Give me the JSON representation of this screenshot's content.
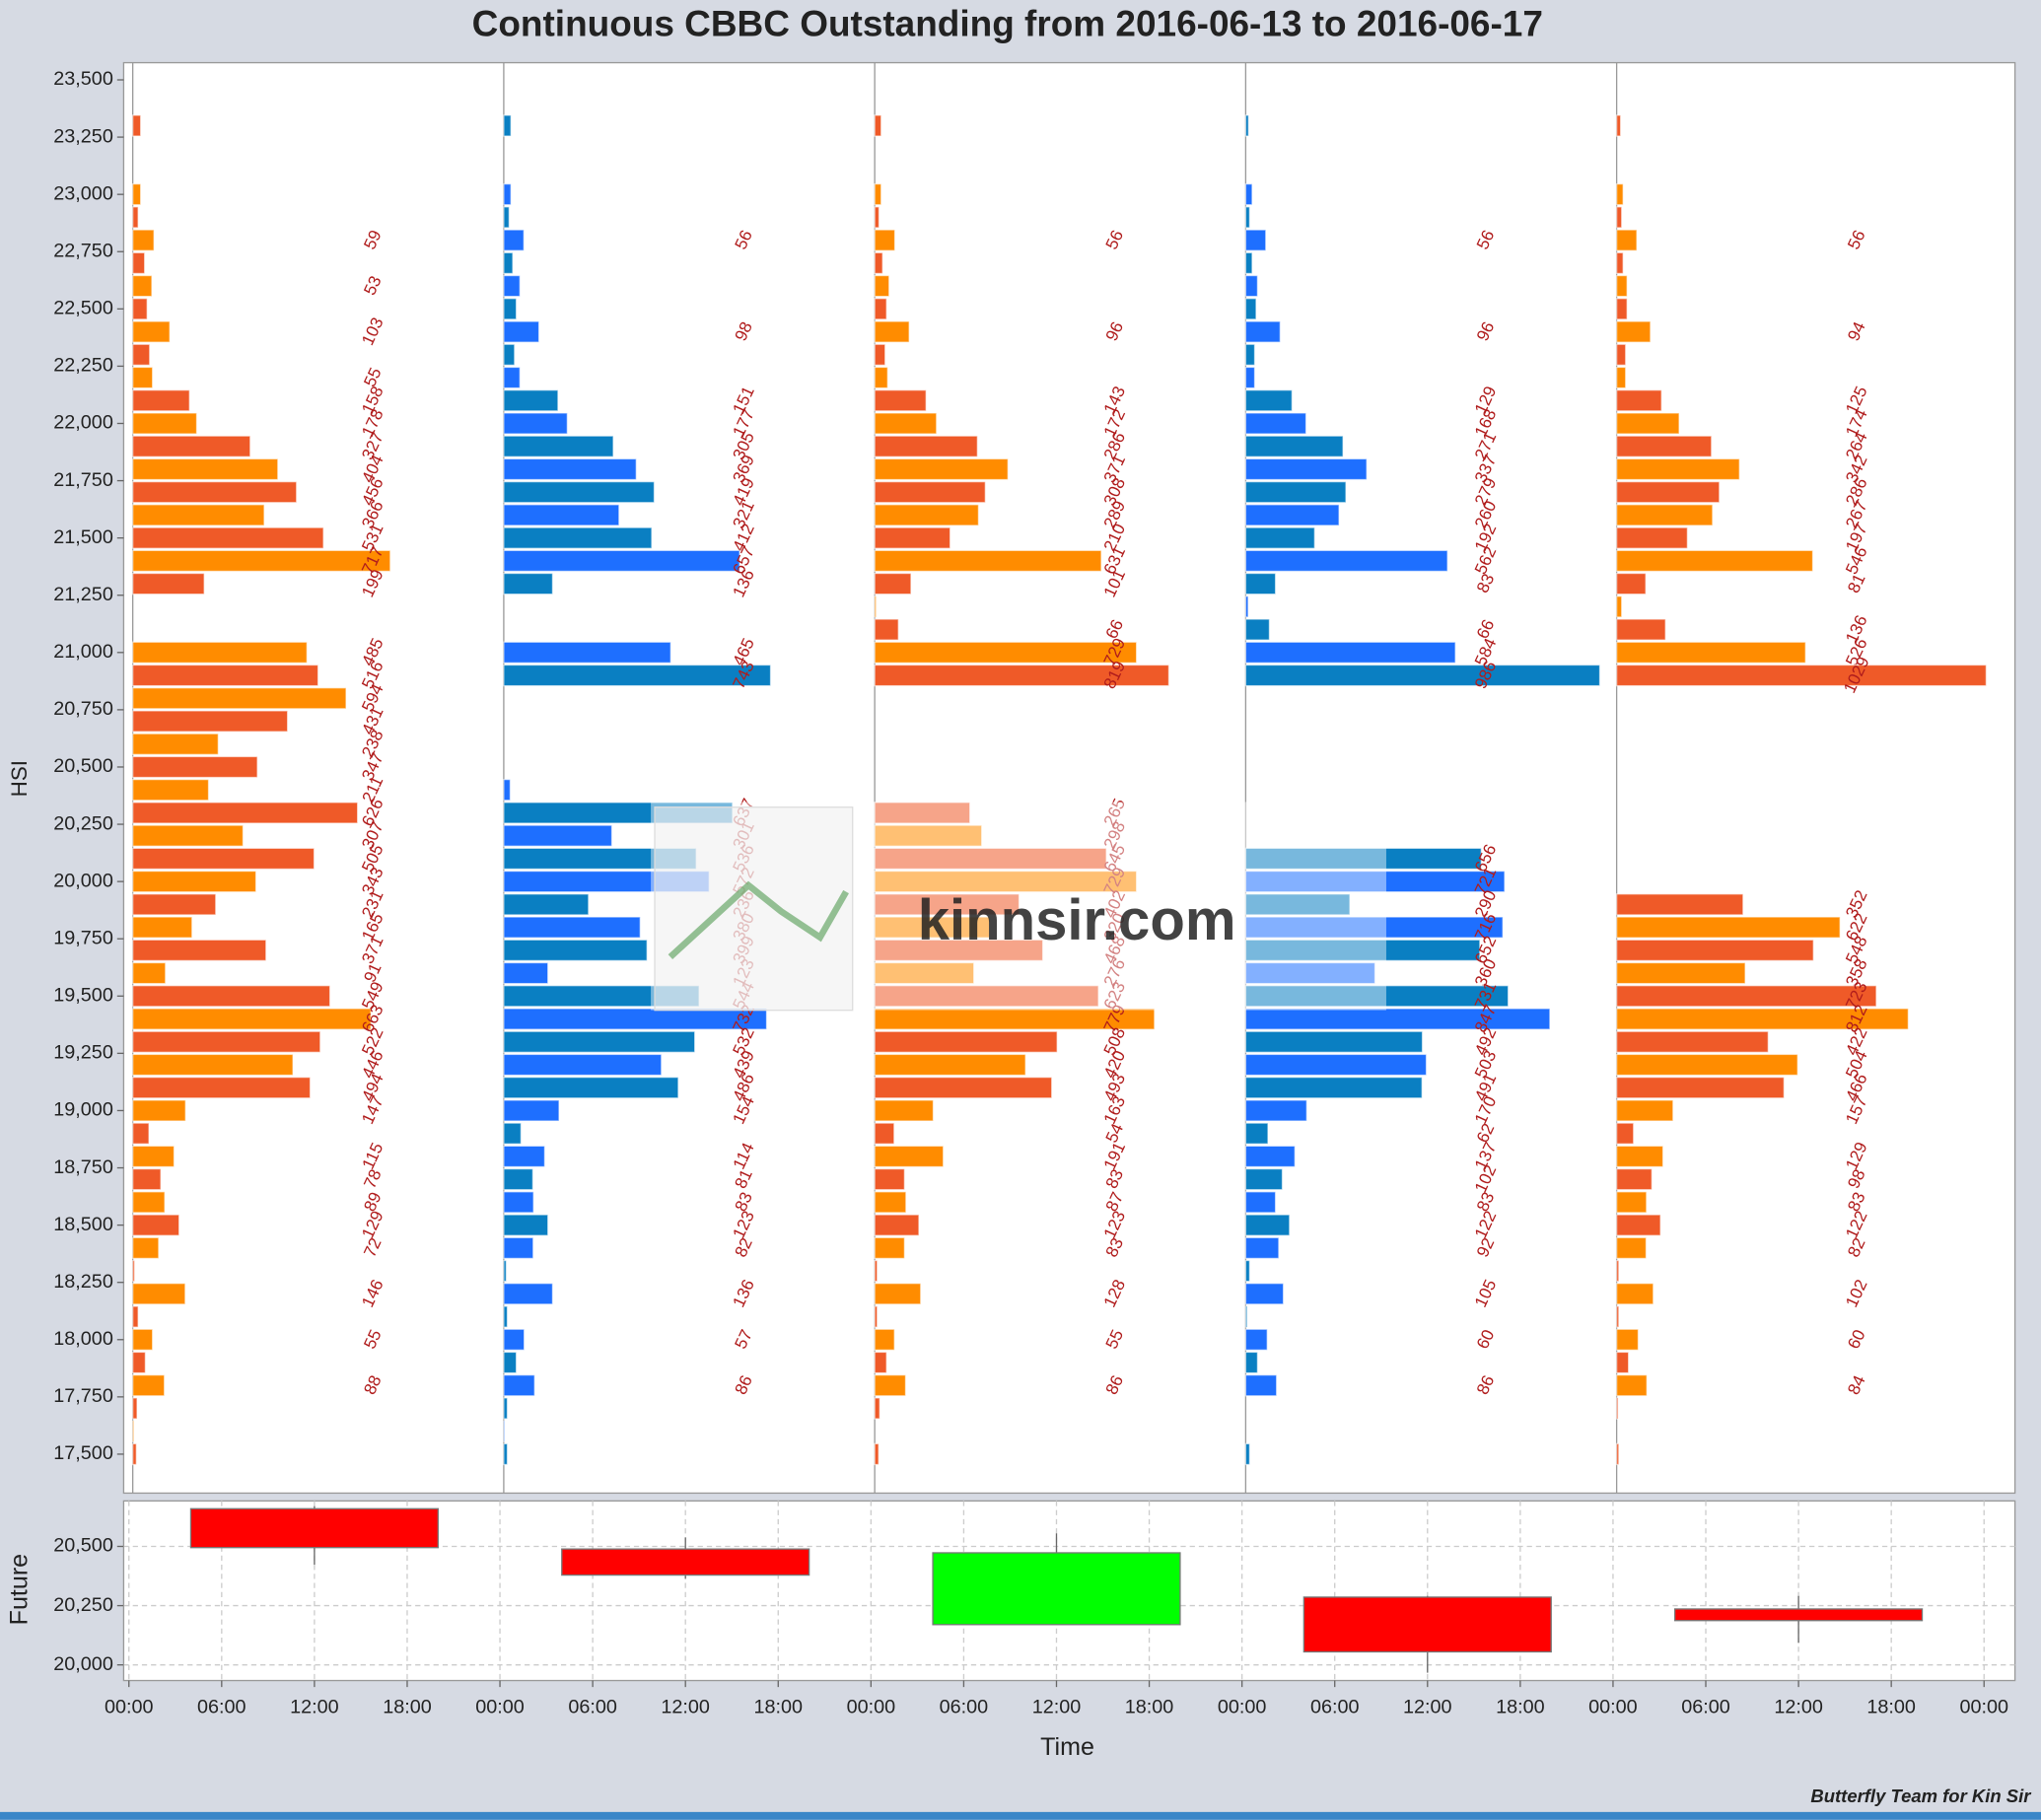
{
  "chart_data": [
    {
      "type": "butterfly-bar",
      "title": "Continuous CBBC Outstanding from 2016-06-13 to 2016-06-17",
      "y_label": "HSI",
      "ylim": [
        17330,
        23575
      ],
      "xlim": [
        0,
        1033
      ],
      "yticks": [
        {
          "value": 17500,
          "label": "17,500"
        },
        {
          "value": 17750,
          "label": "17,750"
        },
        {
          "value": 18000,
          "label": "18,000"
        },
        {
          "value": 18250,
          "label": "18,250"
        },
        {
          "value": 18500,
          "label": "18,500"
        },
        {
          "value": 18750,
          "label": "18,750"
        },
        {
          "value": 19000,
          "label": "19,000"
        },
        {
          "value": 19250,
          "label": "19,250"
        },
        {
          "value": 19500,
          "label": "19,500"
        },
        {
          "value": 19750,
          "label": "19,750"
        },
        {
          "value": 20000,
          "label": "20,000"
        },
        {
          "value": 20250,
          "label": "20,250"
        },
        {
          "value": 20500,
          "label": "20,500"
        },
        {
          "value": 20750,
          "label": "20,750"
        },
        {
          "value": 21000,
          "label": "21,000"
        },
        {
          "value": 21250,
          "label": "21,250"
        },
        {
          "value": 21500,
          "label": "21,500"
        },
        {
          "value": 21750,
          "label": "21,750"
        },
        {
          "value": 22000,
          "label": "22,000"
        },
        {
          "value": 22250,
          "label": "22,250"
        },
        {
          "value": 22500,
          "label": "22,500"
        },
        {
          "value": 22750,
          "label": "22,750"
        },
        {
          "value": 23000,
          "label": "23,000"
        },
        {
          "value": 23250,
          "label": "23,250"
        },
        {
          "value": 23500,
          "label": "23,500"
        }
      ],
      "y": [
        23300,
        23200,
        23100,
        23000,
        22900,
        22800,
        22700,
        22600,
        22500,
        22400,
        22300,
        22200,
        22100,
        22000,
        21900,
        21800,
        21700,
        21600,
        21500,
        21400,
        21300,
        21200,
        21100,
        21000,
        20900,
        20800,
        20700,
        20600,
        20500,
        20400,
        20300,
        20200,
        20100,
        20000,
        19900,
        19800,
        19700,
        19600,
        19500,
        19400,
        19300,
        19200,
        19100,
        19000,
        18900,
        18800,
        18700,
        18600,
        18500,
        18400,
        18300,
        18200,
        18100,
        18000,
        17900,
        17800,
        17700,
        17600,
        17500
      ],
      "panels": [
        {
          "colors": [
            "#ef5a28",
            "#ff8c00"
          ],
          "values": [
            22,
            0,
            0,
            22,
            15,
            59,
            33,
            53,
            40,
            103,
            47,
            55,
            158,
            178,
            327,
            404,
            456,
            366,
            531,
            717,
            199,
            0,
            0,
            485,
            516,
            594,
            431,
            238,
            347,
            211,
            626,
            307,
            505,
            343,
            231,
            165,
            371,
            91,
            549,
            663,
            522,
            446,
            494,
            147,
            45,
            115,
            78,
            89,
            129,
            72,
            5,
            146,
            15,
            55,
            35,
            88,
            12,
            3,
            10
          ],
          "value_labels": [
            null,
            null,
            null,
            null,
            null,
            "59",
            null,
            "53",
            null,
            "103",
            null,
            "55",
            "158",
            "178",
            "327",
            "404",
            "456",
            "366",
            "531",
            "717",
            "199",
            null,
            null,
            "485",
            "516",
            "594",
            "431",
            "238",
            "347",
            "211",
            "626",
            "307",
            "505",
            "343",
            "231",
            "165",
            "371",
            "91",
            "549",
            "663",
            "522",
            "446",
            "494",
            "147",
            null,
            "115",
            "78",
            "89",
            "129",
            "72",
            null,
            "146",
            null,
            "55",
            null,
            "88",
            null,
            null,
            null
          ]
        },
        {
          "colors": [
            "#0a7fc2",
            "#1e6fff"
          ],
          "values": [
            20,
            0,
            0,
            20,
            15,
            56,
            25,
            45,
            35,
            98,
            30,
            45,
            151,
            177,
            305,
            369,
            419,
            321,
            412,
            657,
            136,
            0,
            0,
            465,
            743,
            0,
            0,
            0,
            0,
            18,
            637,
            301,
            536,
            572,
            236,
            380,
            399,
            123,
            544,
            732,
            532,
            439,
            486,
            154,
            48,
            114,
            81,
            83,
            123,
            82,
            7,
            136,
            10,
            57,
            35,
            86,
            10,
            2,
            10
          ],
          "value_labels": [
            null,
            null,
            null,
            null,
            null,
            "56",
            null,
            null,
            null,
            "98",
            null,
            null,
            "151",
            "177",
            "305",
            "369",
            "419",
            "321",
            "412",
            "657",
            "136",
            null,
            null,
            "465",
            "743",
            null,
            null,
            null,
            null,
            null,
            "637",
            "301",
            "536",
            "572",
            "236",
            "380",
            "399",
            "123",
            "544",
            "732",
            "532",
            "439",
            "486",
            "154",
            null,
            "114",
            "81",
            "83",
            "123",
            "82",
            null,
            "136",
            null,
            "57",
            null,
            "86",
            null,
            null,
            null
          ]
        },
        {
          "colors": [
            "#ef5a28",
            "#ff8c00"
          ],
          "values": [
            18,
            0,
            0,
            18,
            12,
            56,
            22,
            40,
            33,
            96,
            29,
            36,
            143,
            172,
            286,
            371,
            308,
            289,
            210,
            631,
            101,
            4,
            66,
            729,
            819,
            0,
            0,
            0,
            0,
            0,
            265,
            298,
            645,
            729,
            402,
            320,
            468,
            276,
            623,
            779,
            508,
            420,
            493,
            163,
            54,
            191,
            83,
            87,
            123,
            83,
            7,
            128,
            7,
            55,
            33,
            86,
            14,
            0,
            11
          ],
          "value_labels": [
            null,
            null,
            null,
            null,
            null,
            "56",
            null,
            null,
            null,
            "96",
            null,
            null,
            "143",
            "172",
            "286",
            "371",
            "308",
            "289",
            "210",
            "631",
            "101",
            null,
            "66",
            "729",
            "819",
            null,
            null,
            null,
            null,
            null,
            "265",
            "298",
            "645",
            "729",
            "402",
            "320",
            "468",
            "276",
            "623",
            "779",
            "508",
            "420",
            "493",
            "163",
            "54",
            "191",
            "83",
            "87",
            "123",
            "83",
            null,
            "128",
            null,
            "55",
            null,
            "86",
            null,
            null,
            null
          ]
        },
        {
          "colors": [
            "#0a7fc2",
            "#1e6fff"
          ],
          "values": [
            8,
            0,
            0,
            18,
            11,
            56,
            18,
            33,
            29,
            96,
            25,
            25,
            129,
            168,
            271,
            337,
            279,
            260,
            192,
            562,
            83,
            7,
            66,
            584,
            986,
            0,
            0,
            0,
            0,
            0,
            0,
            0,
            656,
            721,
            290,
            716,
            652,
            360,
            731,
            847,
            492,
            503,
            491,
            170,
            62,
            137,
            102,
            83,
            122,
            92,
            11,
            105,
            4,
            60,
            33,
            86,
            0,
            0,
            11
          ],
          "value_labels": [
            null,
            null,
            null,
            null,
            null,
            "56",
            null,
            null,
            null,
            "96",
            null,
            null,
            "129",
            "168",
            "271",
            "337",
            "279",
            "260",
            "192",
            "562",
            "83",
            null,
            "66",
            "584",
            "986",
            null,
            null,
            null,
            null,
            null,
            null,
            null,
            "656",
            "721",
            "290",
            "716",
            "652",
            "360",
            "731",
            "847",
            "492",
            "503",
            "491",
            "170",
            "62",
            "137",
            "102",
            "83",
            "122",
            "92",
            null,
            "105",
            null,
            "60",
            null,
            "86",
            null,
            null,
            null
          ]
        },
        {
          "colors": [
            "#ef5a28",
            "#ff8c00"
          ],
          "values": [
            11,
            0,
            0,
            18,
            14,
            56,
            18,
            29,
            29,
            94,
            25,
            25,
            125,
            174,
            264,
            342,
            286,
            267,
            197,
            546,
            81,
            14,
            136,
            526,
            1029,
            0,
            0,
            0,
            0,
            0,
            0,
            0,
            0,
            0,
            352,
            622,
            548,
            358,
            723,
            812,
            422,
            504,
            466,
            157,
            47,
            129,
            98,
            83,
            122,
            82,
            6,
            102,
            6,
            60,
            33,
            84,
            4,
            0,
            6
          ],
          "value_labels": [
            null,
            null,
            null,
            null,
            null,
            "56",
            null,
            null,
            null,
            "94",
            null,
            null,
            "125",
            "174",
            "264",
            "342",
            "286",
            "267",
            "197",
            "546",
            "81",
            null,
            "136",
            "526",
            "1029",
            null,
            null,
            null,
            null,
            null,
            null,
            null,
            null,
            null,
            "352",
            "622",
            "548",
            "358",
            "723",
            "812",
            "422",
            "504",
            "466",
            "157",
            null,
            "129",
            "98",
            "83",
            "122",
            "82",
            null,
            "102",
            null,
            "60",
            null,
            "84",
            null,
            null,
            null
          ]
        }
      ]
    },
    {
      "type": "candlestick",
      "y_label": "Future",
      "x_label": "Time",
      "ylim": [
        19934,
        20692
      ],
      "yticks": [
        {
          "value": 20000,
          "label": "20,000"
        },
        {
          "value": 20250,
          "label": "20,250"
        },
        {
          "value": 20500,
          "label": "20,500"
        }
      ],
      "xlim": [
        -0.34,
        122.0
      ],
      "xticks": [
        {
          "value": 0,
          "label": "00:00"
        },
        {
          "value": 6,
          "label": "06:00"
        },
        {
          "value": 12,
          "label": "12:00"
        },
        {
          "value": 18,
          "label": "18:00"
        },
        {
          "value": 24,
          "label": "00:00"
        },
        {
          "value": 30,
          "label": "06:00"
        },
        {
          "value": 36,
          "label": "12:00"
        },
        {
          "value": 42,
          "label": "18:00"
        },
        {
          "value": 48,
          "label": "00:00"
        },
        {
          "value": 54,
          "label": "06:00"
        },
        {
          "value": 60,
          "label": "12:00"
        },
        {
          "value": 66,
          "label": "18:00"
        },
        {
          "value": 72,
          "label": "00:00"
        },
        {
          "value": 78,
          "label": "06:00"
        },
        {
          "value": 84,
          "label": "12:00"
        },
        {
          "value": 90,
          "label": "18:00"
        },
        {
          "value": 96,
          "label": "00:00"
        },
        {
          "value": 102,
          "label": "06:00"
        },
        {
          "value": 108,
          "label": "12:00"
        },
        {
          "value": 114,
          "label": "18:00"
        },
        {
          "value": 120,
          "label": "00:00"
        }
      ],
      "x": [
        12,
        36,
        60,
        84,
        108
      ],
      "open": [
        20659,
        20489,
        20170,
        20286,
        20236
      ],
      "high": [
        20670,
        20538,
        20555,
        20291,
        20291
      ],
      "low": [
        20423,
        20363,
        20170,
        19967,
        20093
      ],
      "close": [
        20495,
        20379,
        20473,
        20055,
        20187
      ],
      "up_color": "#00ff00",
      "down_color": "#ff0000",
      "grid": true
    }
  ],
  "watermark": "kinnsir.com",
  "footer": "Butterfly Team for Kin Sir"
}
